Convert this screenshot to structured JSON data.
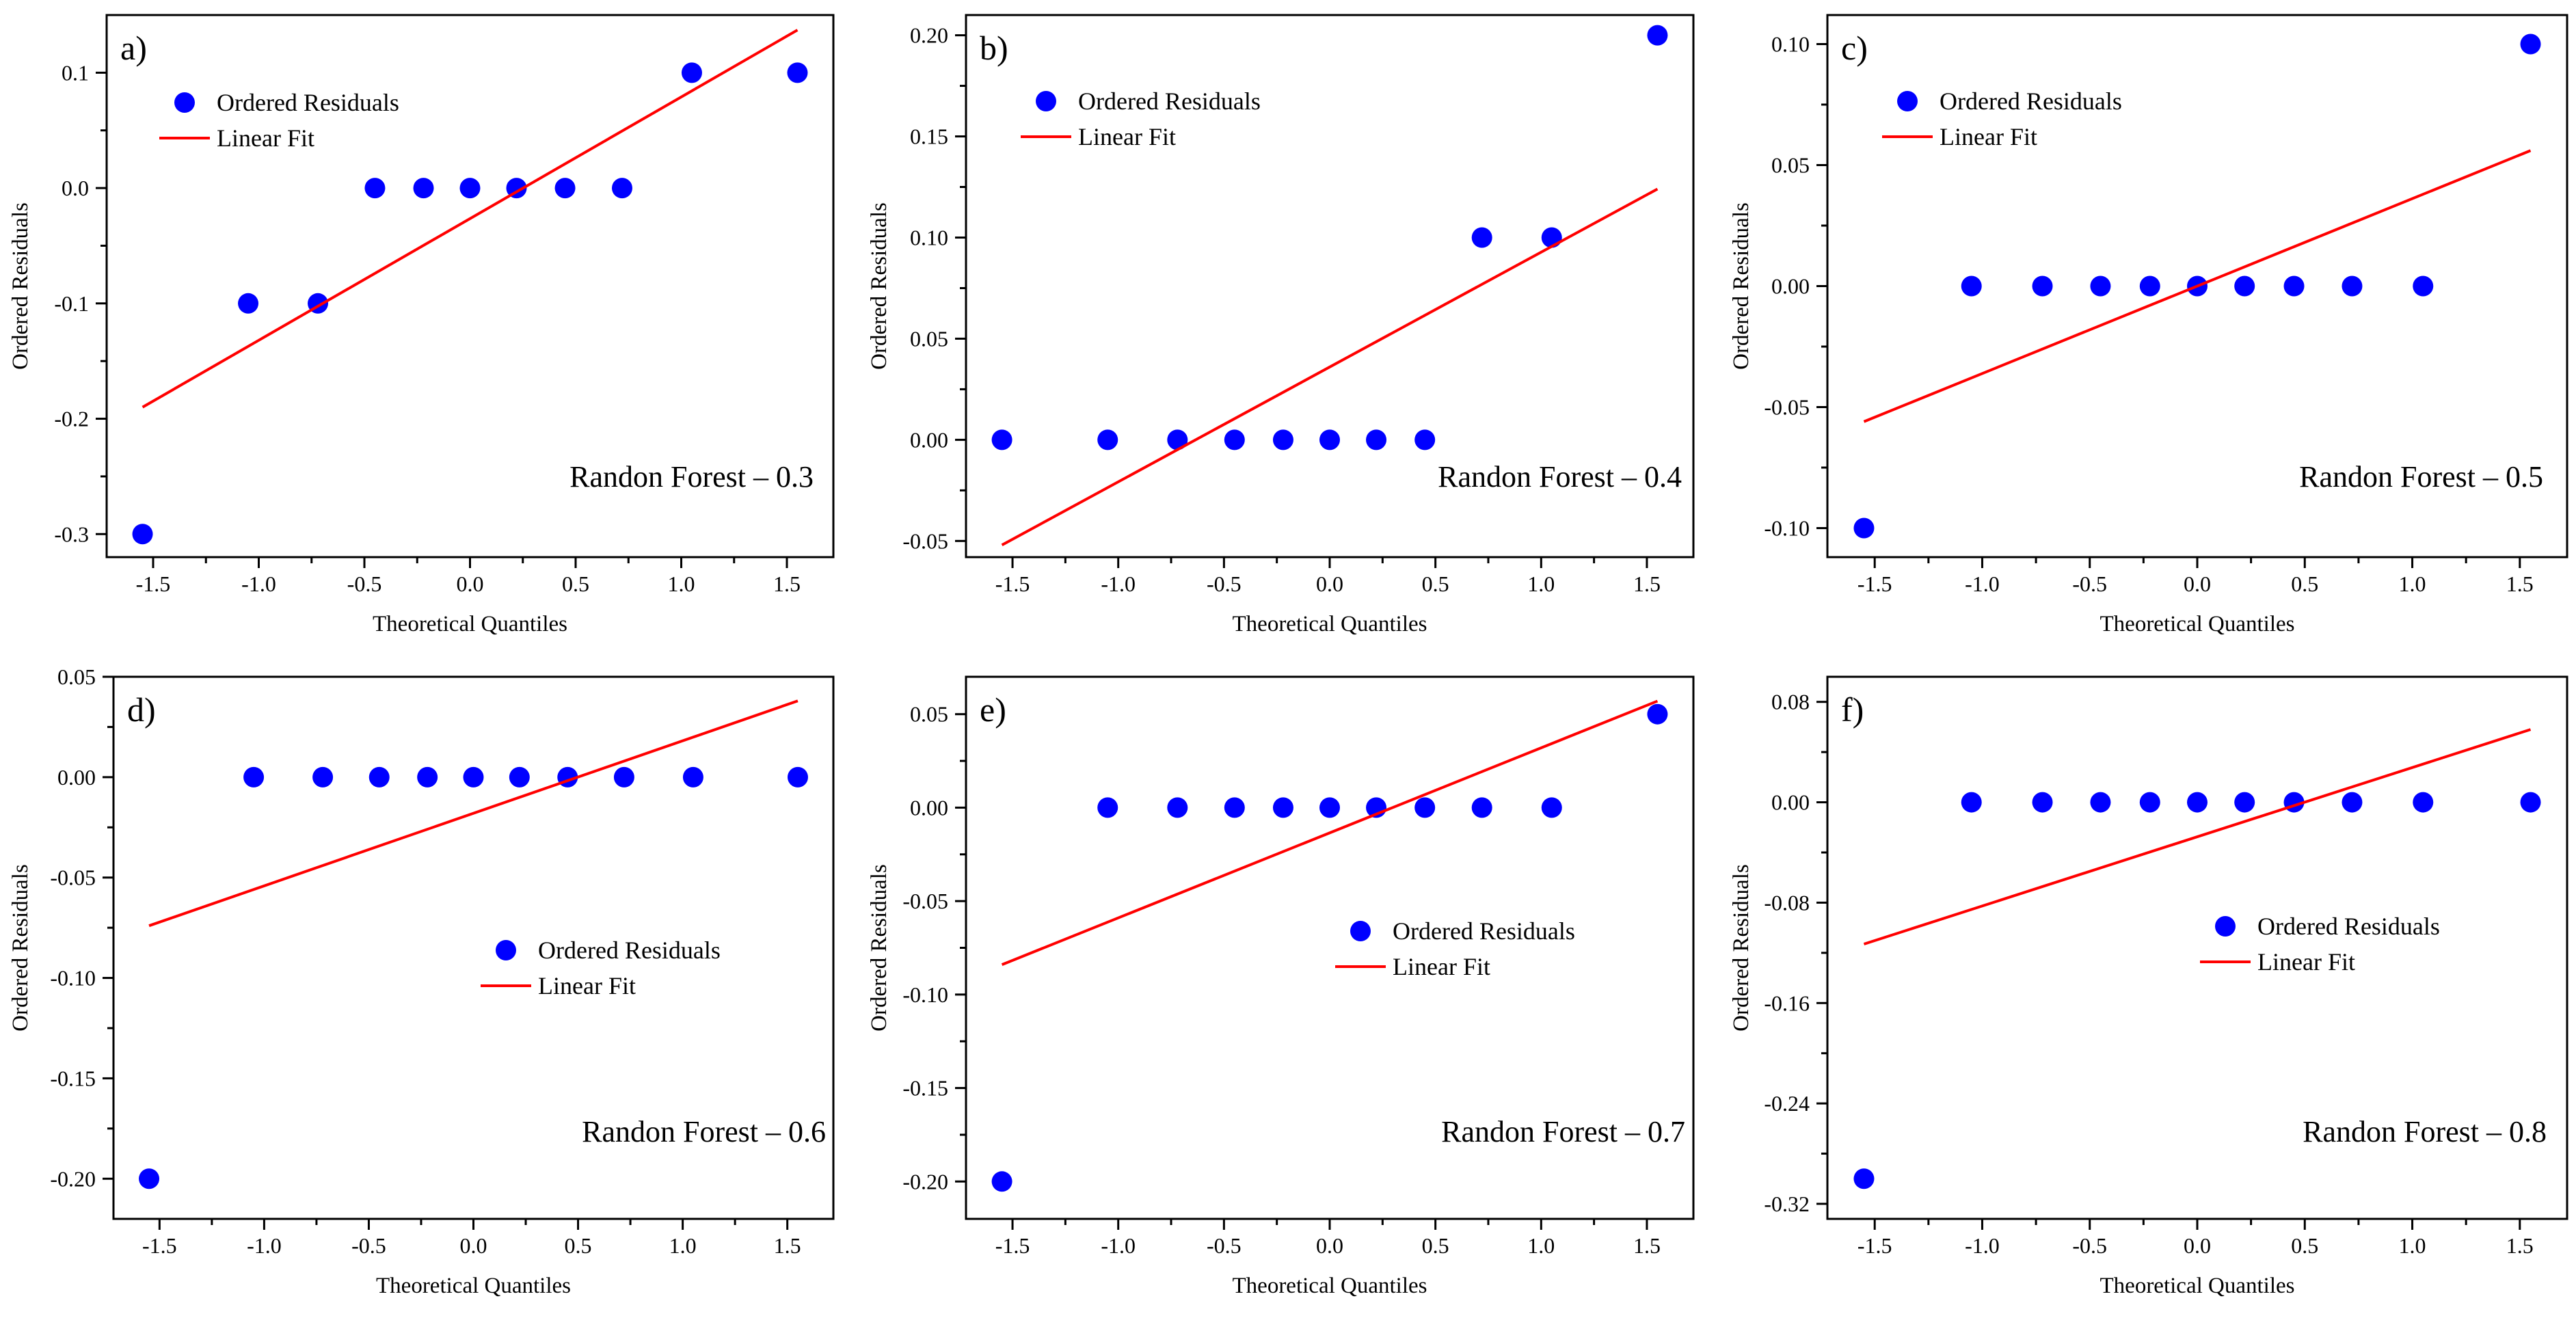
{
  "chart_data": [
    {
      "type": "scatter",
      "panel_label": "a)",
      "annotation": "Randon Forest – 0.3",
      "xlabel": "Theoretical Quantiles",
      "ylabel": "Ordered Residuals",
      "xlim": [
        -1.72,
        1.72
      ],
      "ylim": [
        -0.32,
        0.15
      ],
      "x_ticks": [
        -1.5,
        -1.0,
        -0.5,
        0.0,
        0.5,
        1.0,
        1.5
      ],
      "x_tick_labels": [
        "-1.5",
        "-1.0",
        "-0.5",
        "0.0",
        "0.5",
        "1.0",
        "1.5"
      ],
      "y_ticks": [
        -0.3,
        -0.2,
        -0.1,
        0.0,
        0.1
      ],
      "y_tick_labels": [
        "-0.3",
        "-0.2",
        "-0.1",
        "0.0",
        "0.1"
      ],
      "legend": {
        "position": "top-left",
        "points_label": "Ordered Residuals",
        "line_label": "Linear Fit"
      },
      "series": [
        {
          "name": "Ordered Residuals",
          "kind": "points",
          "color": "#0000ff",
          "x": [
            -1.55,
            -1.05,
            -0.72,
            -0.45,
            -0.22,
            0.0,
            0.22,
            0.45,
            0.72,
            1.05,
            1.55
          ],
          "y": [
            -0.3,
            -0.1,
            -0.1,
            0.0,
            0.0,
            0.0,
            0.0,
            0.0,
            0.0,
            0.1,
            0.1
          ]
        },
        {
          "name": "Linear Fit",
          "kind": "line",
          "color": "#ff0000",
          "x": [
            -1.55,
            1.55
          ],
          "y": [
            -0.19,
            0.137
          ]
        }
      ]
    },
    {
      "type": "scatter",
      "panel_label": "b)",
      "annotation": "Randon Forest – 0.4",
      "xlabel": "Theoretical Quantiles",
      "ylabel": "Ordered Residuals",
      "xlim": [
        -1.72,
        1.72
      ],
      "ylim": [
        -0.058,
        0.21
      ],
      "x_ticks": [
        -1.5,
        -1.0,
        -0.5,
        0.0,
        0.5,
        1.0,
        1.5
      ],
      "x_tick_labels": [
        "-1.5",
        "-1.0",
        "-0.5",
        "0.0",
        "0.5",
        "1.0",
        "1.5"
      ],
      "y_ticks": [
        -0.05,
        0.0,
        0.05,
        0.1,
        0.15,
        0.2
      ],
      "y_tick_labels": [
        "-0.05",
        "0.00",
        "0.05",
        "0.10",
        "0.15",
        "0.20"
      ],
      "legend": {
        "position": "top-left",
        "points_label": "Ordered Residuals",
        "line_label": "Linear Fit"
      },
      "series": [
        {
          "name": "Ordered Residuals",
          "kind": "points",
          "color": "#0000ff",
          "x": [
            -1.55,
            -1.05,
            -0.72,
            -0.45,
            -0.22,
            0.0,
            0.22,
            0.45,
            0.72,
            1.05,
            1.55
          ],
          "y": [
            0.0,
            0.0,
            0.0,
            0.0,
            0.0,
            0.0,
            0.0,
            0.0,
            0.1,
            0.1,
            0.2
          ]
        },
        {
          "name": "Linear Fit",
          "kind": "line",
          "color": "#ff0000",
          "x": [
            -1.55,
            1.55
          ],
          "y": [
            -0.052,
            0.124
          ]
        }
      ]
    },
    {
      "type": "scatter",
      "panel_label": "c)",
      "annotation": "Randon Forest – 0.5",
      "xlabel": "Theoretical Quantiles",
      "ylabel": "Ordered Residuals",
      "xlim": [
        -1.72,
        1.72
      ],
      "ylim": [
        -0.112,
        0.112
      ],
      "x_ticks": [
        -1.5,
        -1.0,
        -0.5,
        0.0,
        0.5,
        1.0,
        1.5
      ],
      "x_tick_labels": [
        "-1.5",
        "-1.0",
        "-0.5",
        "0.0",
        "0.5",
        "1.0",
        "1.5"
      ],
      "y_ticks": [
        -0.1,
        -0.05,
        0.0,
        0.05,
        0.1
      ],
      "y_tick_labels": [
        "-0.10",
        "-0.05",
        "0.00",
        "0.05",
        "0.10"
      ],
      "legend": {
        "position": "top-left",
        "points_label": "Ordered Residuals",
        "line_label": "Linear Fit"
      },
      "series": [
        {
          "name": "Ordered Residuals",
          "kind": "points",
          "color": "#0000ff",
          "x": [
            -1.55,
            -1.05,
            -0.72,
            -0.45,
            -0.22,
            0.0,
            0.22,
            0.45,
            0.72,
            1.05,
            1.55
          ],
          "y": [
            -0.1,
            0.0,
            0.0,
            0.0,
            0.0,
            0.0,
            0.0,
            0.0,
            0.0,
            0.0,
            0.1
          ]
        },
        {
          "name": "Linear Fit",
          "kind": "line",
          "color": "#ff0000",
          "x": [
            -1.55,
            1.55
          ],
          "y": [
            -0.056,
            0.056
          ]
        }
      ]
    },
    {
      "type": "scatter",
      "panel_label": "d)",
      "annotation": "Randon Forest – 0.6",
      "xlabel": "Theoretical Quantiles",
      "ylabel": "Ordered Residuals",
      "xlim": [
        -1.72,
        1.72
      ],
      "ylim": [
        -0.22,
        0.05
      ],
      "x_ticks": [
        -1.5,
        -1.0,
        -0.5,
        0.0,
        0.5,
        1.0,
        1.5
      ],
      "x_tick_labels": [
        "-1.5",
        "-1.0",
        "-0.5",
        "0.0",
        "0.5",
        "1.0",
        "1.5"
      ],
      "y_ticks": [
        -0.2,
        -0.15,
        -0.1,
        -0.05,
        0.0,
        0.05
      ],
      "y_tick_labels": [
        "-0.20",
        "-0.15",
        "-0.10",
        "-0.05",
        "0.00",
        "0.05"
      ],
      "legend": {
        "position": "center",
        "points_label": "Ordered Residuals",
        "line_label": "Linear Fit"
      },
      "series": [
        {
          "name": "Ordered Residuals",
          "kind": "points",
          "color": "#0000ff",
          "x": [
            -1.55,
            -1.05,
            -0.72,
            -0.45,
            -0.22,
            0.0,
            0.22,
            0.45,
            0.72,
            1.05,
            1.55
          ],
          "y": [
            -0.2,
            0.0,
            0.0,
            0.0,
            0.0,
            0.0,
            0.0,
            0.0,
            0.0,
            0.0,
            0.0
          ]
        },
        {
          "name": "Linear Fit",
          "kind": "line",
          "color": "#ff0000",
          "x": [
            -1.55,
            1.55
          ],
          "y": [
            -0.074,
            0.038
          ]
        }
      ]
    },
    {
      "type": "scatter",
      "panel_label": "e)",
      "annotation": "Randon Forest – 0.7",
      "xlabel": "Theoretical Quantiles",
      "ylabel": "Ordered Residuals",
      "xlim": [
        -1.72,
        1.72
      ],
      "ylim": [
        -0.22,
        0.07
      ],
      "x_ticks": [
        -1.5,
        -1.0,
        -0.5,
        0.0,
        0.5,
        1.0,
        1.5
      ],
      "x_tick_labels": [
        "-1.5",
        "-1.0",
        "-0.5",
        "0.0",
        "0.5",
        "1.0",
        "1.5"
      ],
      "y_ticks": [
        -0.2,
        -0.15,
        -0.1,
        -0.05,
        0.0,
        0.05
      ],
      "y_tick_labels": [
        "-0.20",
        "-0.15",
        "-0.10",
        "-0.05",
        "0.00",
        "0.05"
      ],
      "legend": {
        "position": "center",
        "points_label": "Ordered Residuals",
        "line_label": "Linear Fit"
      },
      "series": [
        {
          "name": "Ordered Residuals",
          "kind": "points",
          "color": "#0000ff",
          "x": [
            -1.55,
            -1.05,
            -0.72,
            -0.45,
            -0.22,
            0.0,
            0.22,
            0.45,
            0.72,
            1.05,
            1.55
          ],
          "y": [
            -0.2,
            0.0,
            0.0,
            0.0,
            0.0,
            0.0,
            0.0,
            0.0,
            0.0,
            0.0,
            0.05
          ]
        },
        {
          "name": "Linear Fit",
          "kind": "line",
          "color": "#ff0000",
          "x": [
            -1.55,
            1.55
          ],
          "y": [
            -0.084,
            0.057
          ]
        }
      ]
    },
    {
      "type": "scatter",
      "panel_label": "f)",
      "annotation": "Randon Forest – 0.8",
      "xlabel": "Theoretical Quantiles",
      "ylabel": "Ordered Residuals",
      "xlim": [
        -1.72,
        1.72
      ],
      "ylim": [
        -0.332,
        0.1
      ],
      "x_ticks": [
        -1.5,
        -1.0,
        -0.5,
        0.0,
        0.5,
        1.0,
        1.5
      ],
      "x_tick_labels": [
        "-1.5",
        "-1.0",
        "-0.5",
        "0.0",
        "0.5",
        "1.0",
        "1.5"
      ],
      "y_ticks": [
        -0.32,
        -0.24,
        -0.16,
        -0.08,
        0.0,
        0.08
      ],
      "y_tick_labels": [
        "-0.32",
        "-0.24",
        "-0.16",
        "-0.08",
        "0.00",
        "0.08"
      ],
      "legend": {
        "position": "center-right",
        "points_label": "Ordered Residuals",
        "line_label": "Linear Fit"
      },
      "series": [
        {
          "name": "Ordered Residuals",
          "kind": "points",
          "color": "#0000ff",
          "x": [
            -1.55,
            -1.05,
            -0.72,
            -0.45,
            -0.22,
            0.0,
            0.22,
            0.45,
            0.72,
            1.05,
            1.55
          ],
          "y": [
            -0.3,
            0.0,
            0.0,
            0.0,
            0.0,
            0.0,
            0.0,
            0.0,
            0.0,
            0.0,
            0.0
          ]
        },
        {
          "name": "Linear Fit",
          "kind": "line",
          "color": "#ff0000",
          "x": [
            -1.55,
            1.55
          ],
          "y": [
            -0.113,
            0.058
          ]
        }
      ]
    }
  ]
}
